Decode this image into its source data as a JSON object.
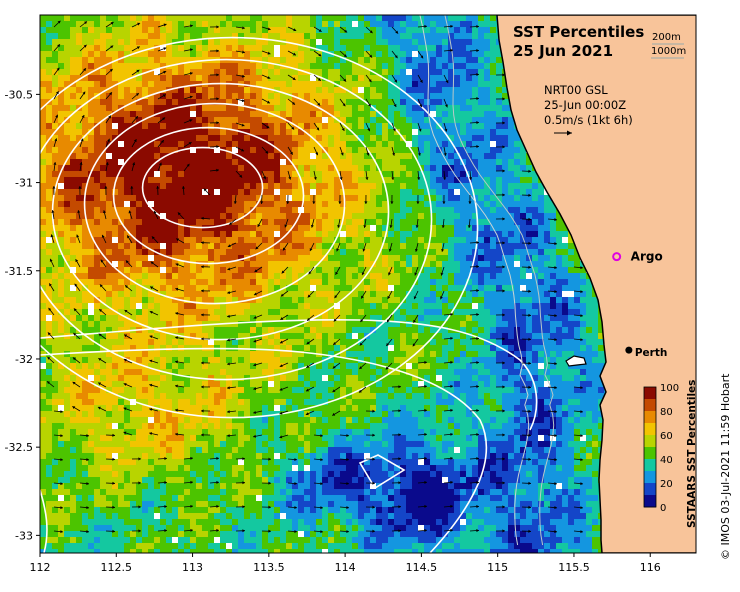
{
  "map": {
    "title_line1": "SST Percentiles",
    "title_line2": "25 Jun 2021",
    "depth_contour_labels": [
      "200m",
      "1000m"
    ],
    "product_line": "NRT00 GSL",
    "time_line": "25-Jun 00:00Z",
    "vector_scale_label": "0.5m/s (1kt 6h)",
    "lon_ticks": [
      "112",
      "112.5",
      "113",
      "113.5",
      "114",
      "114.5",
      "115",
      "115.5",
      "116"
    ],
    "lat_ticks": [
      "-30.5",
      "-31",
      "-31.5",
      "-32",
      "-32.5",
      "-33"
    ],
    "lon_tick_values": [
      112,
      112.5,
      113,
      113.5,
      114,
      114.5,
      115,
      115.5,
      116
    ],
    "lat_tick_values": [
      -30.5,
      -31,
      -31.5,
      -32,
      -32.5,
      -33
    ],
    "extent": {
      "lon": [
        112,
        116.3
      ],
      "lat": [
        -33.1,
        -30.05
      ]
    },
    "places": [
      {
        "name": "Argo",
        "lon": 115.78,
        "lat": -31.42,
        "marker": "magenta-circle"
      },
      {
        "name": "Perth",
        "lon": 115.86,
        "lat": -31.95,
        "marker": "black-dot"
      }
    ],
    "eddy_center": {
      "lon": 113.0,
      "lat": -31.0
    }
  },
  "colorbar": {
    "title": "SSTAARS SST Percentiles",
    "tick_labels": [
      "100",
      "80",
      "60",
      "40",
      "20",
      "0"
    ],
    "colors": [
      "#8b0a00",
      "#c44a00",
      "#e88a00",
      "#f2c400",
      "#b8d400",
      "#4cc400",
      "#14c8a0",
      "#1496e0",
      "#1446c8",
      "#0a0a8c"
    ]
  },
  "colors": {
    "land": "#f8c49a",
    "coast": "#000000",
    "contour": "#ffffff",
    "argo": "#e000e0"
  },
  "credit": "© IMOS 03-Jul-2021 11:59 Hobart"
}
